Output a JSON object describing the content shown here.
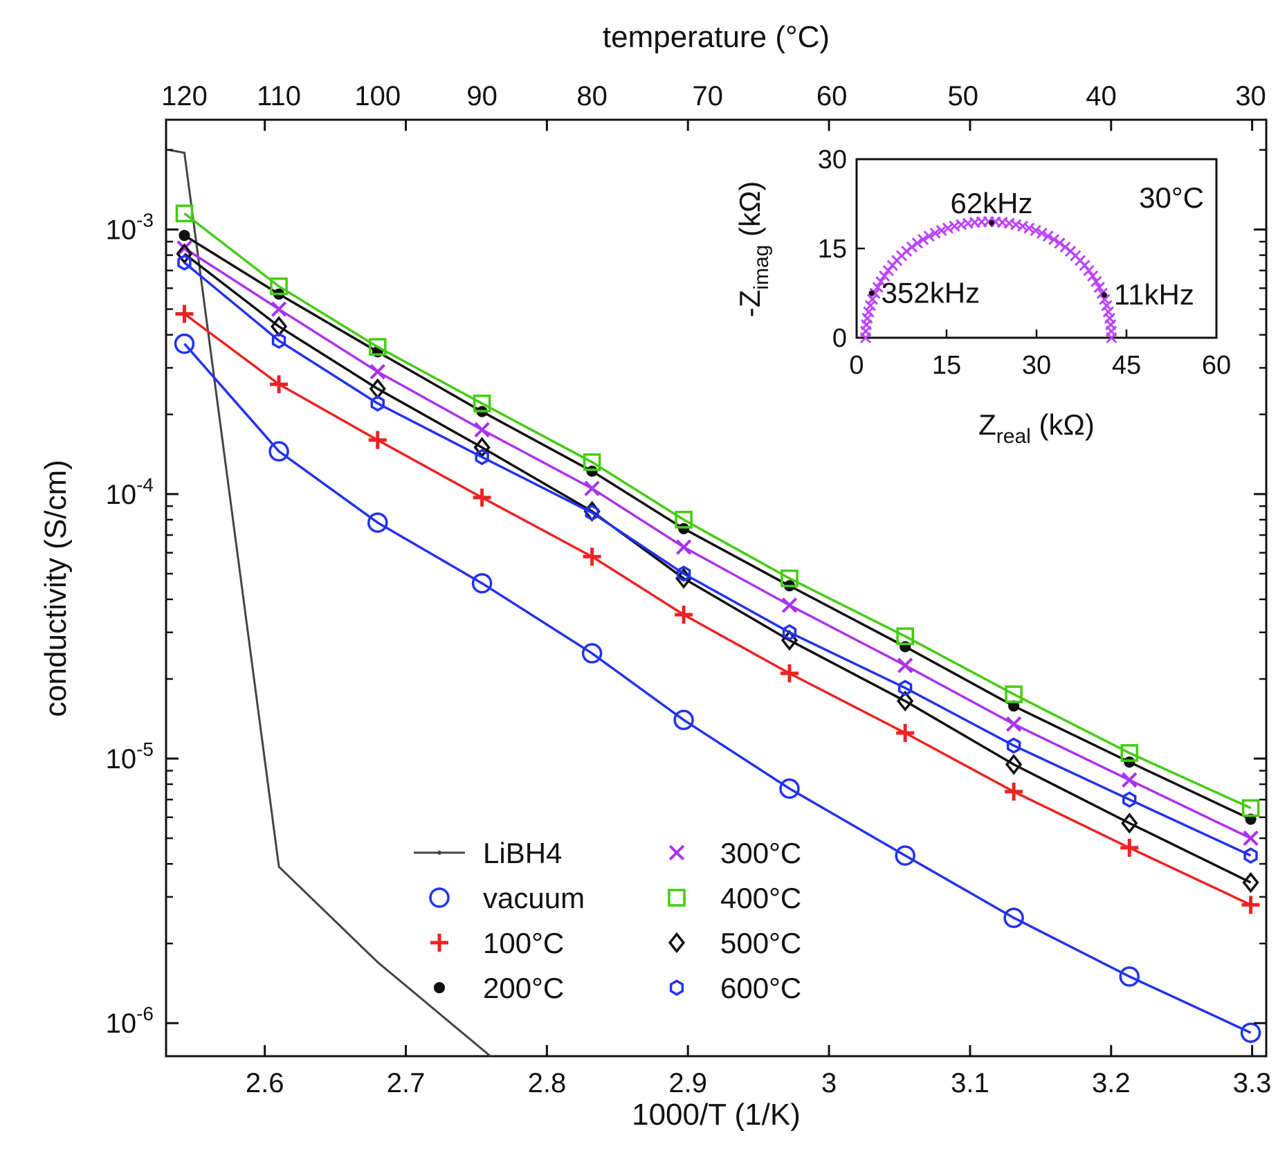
{
  "chart_data": {
    "type": "line",
    "xlabel": "1000/T (1/K)",
    "ylabel": "conductivity (S/cm)",
    "x2label": "temperature (°C)",
    "yscale": "log",
    "xlim": [
      2.53,
      3.31
    ],
    "ylim": [
      7.5e-07,
      0.0026
    ],
    "xticks": [
      {
        "v": 2.6,
        "label": "2.6"
      },
      {
        "v": 2.7,
        "label": "2.7"
      },
      {
        "v": 2.8,
        "label": "2.8"
      },
      {
        "v": 2.9,
        "label": "2.9"
      },
      {
        "v": 3.0,
        "label": "3"
      },
      {
        "v": 3.1,
        "label": "3.1"
      },
      {
        "v": 3.2,
        "label": "3.2"
      },
      {
        "v": 3.3,
        "label": "3.3"
      }
    ],
    "yticks": [
      {
        "v": 0.001,
        "base": "10",
        "exp": "-3"
      },
      {
        "v": 0.0001,
        "base": "10",
        "exp": "-4"
      },
      {
        "v": 1e-05,
        "base": "10",
        "exp": "-5"
      },
      {
        "v": 1e-06,
        "base": "10",
        "exp": "-6"
      }
    ],
    "top_ticks": [
      {
        "v": 2.543,
        "label": "120"
      },
      {
        "v": 2.61,
        "label": "110"
      },
      {
        "v": 2.68,
        "label": "100"
      },
      {
        "v": 2.754,
        "label": "90"
      },
      {
        "v": 2.832,
        "label": "80"
      },
      {
        "v": 2.914,
        "label": "70"
      },
      {
        "v": 3.002,
        "label": "60"
      },
      {
        "v": 3.095,
        "label": "50"
      },
      {
        "v": 3.193,
        "label": "40"
      },
      {
        "v": 3.299,
        "label": "30"
      }
    ],
    "x": [
      2.543,
      2.61,
      2.68,
      2.754,
      2.832,
      2.897,
      2.972,
      3.054,
      3.131,
      3.213,
      3.299
    ],
    "series": [
      {
        "name": "vacuum",
        "color": "#2233ee",
        "marker": "circle",
        "values": [
          0.00037,
          0.000145,
          7.8e-05,
          4.6e-05,
          2.5e-05,
          1.4e-05,
          7.7e-06,
          4.3e-06,
          2.5e-06,
          1.5e-06,
          9.2e-07
        ]
      },
      {
        "name": "100°C",
        "color": "#ee2222",
        "marker": "plus",
        "values": [
          0.00048,
          0.00026,
          0.00016,
          9.7e-05,
          5.8e-05,
          3.5e-05,
          2.1e-05,
          1.25e-05,
          7.5e-06,
          4.6e-06,
          2.8e-06
        ]
      },
      {
        "name": "200°C",
        "color": "#111111",
        "marker": "dot",
        "values": [
          0.00095,
          0.00057,
          0.000345,
          0.000205,
          0.000122,
          7.4e-05,
          4.5e-05,
          2.65e-05,
          1.58e-05,
          9.7e-06,
          5.9e-06
        ]
      },
      {
        "name": "300°C",
        "color": "#aa33ee",
        "marker": "x",
        "values": [
          0.00085,
          0.0005,
          0.00029,
          0.000175,
          0.000105,
          6.3e-05,
          3.8e-05,
          2.25e-05,
          1.35e-05,
          8.3e-06,
          5e-06
        ]
      },
      {
        "name": "400°C",
        "color": "#44cc11",
        "marker": "square",
        "values": [
          0.00115,
          0.00061,
          0.00036,
          0.00022,
          0.000132,
          8e-05,
          4.8e-05,
          2.9e-05,
          1.75e-05,
          1.05e-05,
          6.5e-06
        ]
      },
      {
        "name": "500°C",
        "color": "#111111",
        "marker": "diamond",
        "values": [
          0.00081,
          0.00043,
          0.00025,
          0.00015,
          8.6e-05,
          4.8e-05,
          2.8e-05,
          1.65e-05,
          9.5e-06,
          5.7e-06,
          3.4e-06
        ]
      },
      {
        "name": "600°C",
        "color": "#2233ee",
        "marker": "hexagon",
        "values": [
          0.00075,
          0.00038,
          0.00022,
          0.000138,
          8.5e-05,
          5e-05,
          3e-05,
          1.85e-05,
          1.12e-05,
          7e-06,
          4.3e-06
        ]
      }
    ],
    "libh4": {
      "name": "LiBH4",
      "color": "#444444",
      "x": [
        2.532,
        2.543,
        2.61,
        2.68,
        2.76
      ],
      "values": [
        0.002,
        0.00195,
        3.9e-06,
        1.7e-06,
        7.5e-07
      ]
    },
    "legend": {
      "col1": [
        "LiBH4",
        "vacuum",
        "100°C",
        "200°C"
      ],
      "col2": [
        "300°C",
        "400°C",
        "500°C",
        "600°C"
      ]
    },
    "inset": {
      "type": "scatter",
      "xlabel_base": "Z",
      "xlabel_sub": "real",
      "xlabel_unit": " (kΩ)",
      "ylabel_pre": "-Z",
      "ylabel_sub": "imag",
      "ylabel_unit": " (kΩ)",
      "xlim": [
        0,
        60
      ],
      "ylim": [
        0,
        30
      ],
      "xticks": [
        "0",
        "15",
        "30",
        "45",
        "60"
      ],
      "yticks": [
        "0",
        "15",
        "30"
      ],
      "temperature_label": "30°C",
      "arc": {
        "center": 22,
        "radius": 20.5,
        "peak_imag": 19.5,
        "color": "#bb44ff"
      },
      "annotations": [
        {
          "label": "352kHz",
          "x": 2.5,
          "y": 7.5
        },
        {
          "label": "62kHz",
          "x": 22.5,
          "y": 19.3
        },
        {
          "label": "11kHz",
          "x": 41.3,
          "y": 7.2
        }
      ]
    }
  }
}
